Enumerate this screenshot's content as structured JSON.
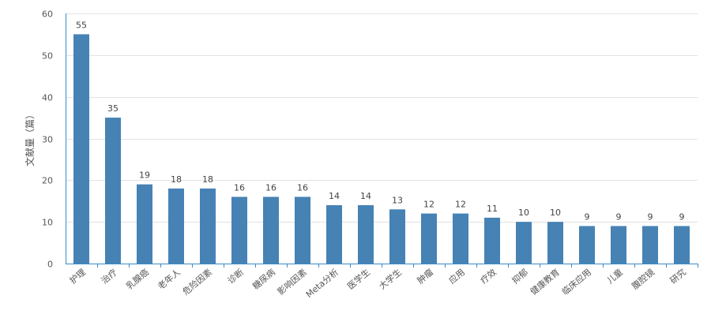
{
  "chart_data": {
    "type": "bar",
    "ylabel": "文献量（篇）",
    "xlabel": "",
    "ylim": [
      0,
      60
    ],
    "yticks": [
      0,
      10,
      20,
      30,
      40,
      50,
      60
    ],
    "grid": true,
    "bar_color": "#4682B4",
    "categories": [
      "护理",
      "治疗",
      "乳腺癌",
      "老年人",
      "危险因素",
      "诊断",
      "糖尿病",
      "影响因素",
      "Meta分析",
      "医学生",
      "大学生",
      "肿瘤",
      "应用",
      "疗效",
      "抑郁",
      "健康教育",
      "临床应用",
      "儿童",
      "腹腔镜",
      "研究"
    ],
    "values": [
      55,
      35,
      19,
      18,
      18,
      16,
      16,
      16,
      14,
      14,
      13,
      12,
      12,
      11,
      10,
      10,
      9,
      9,
      9,
      9
    ]
  }
}
